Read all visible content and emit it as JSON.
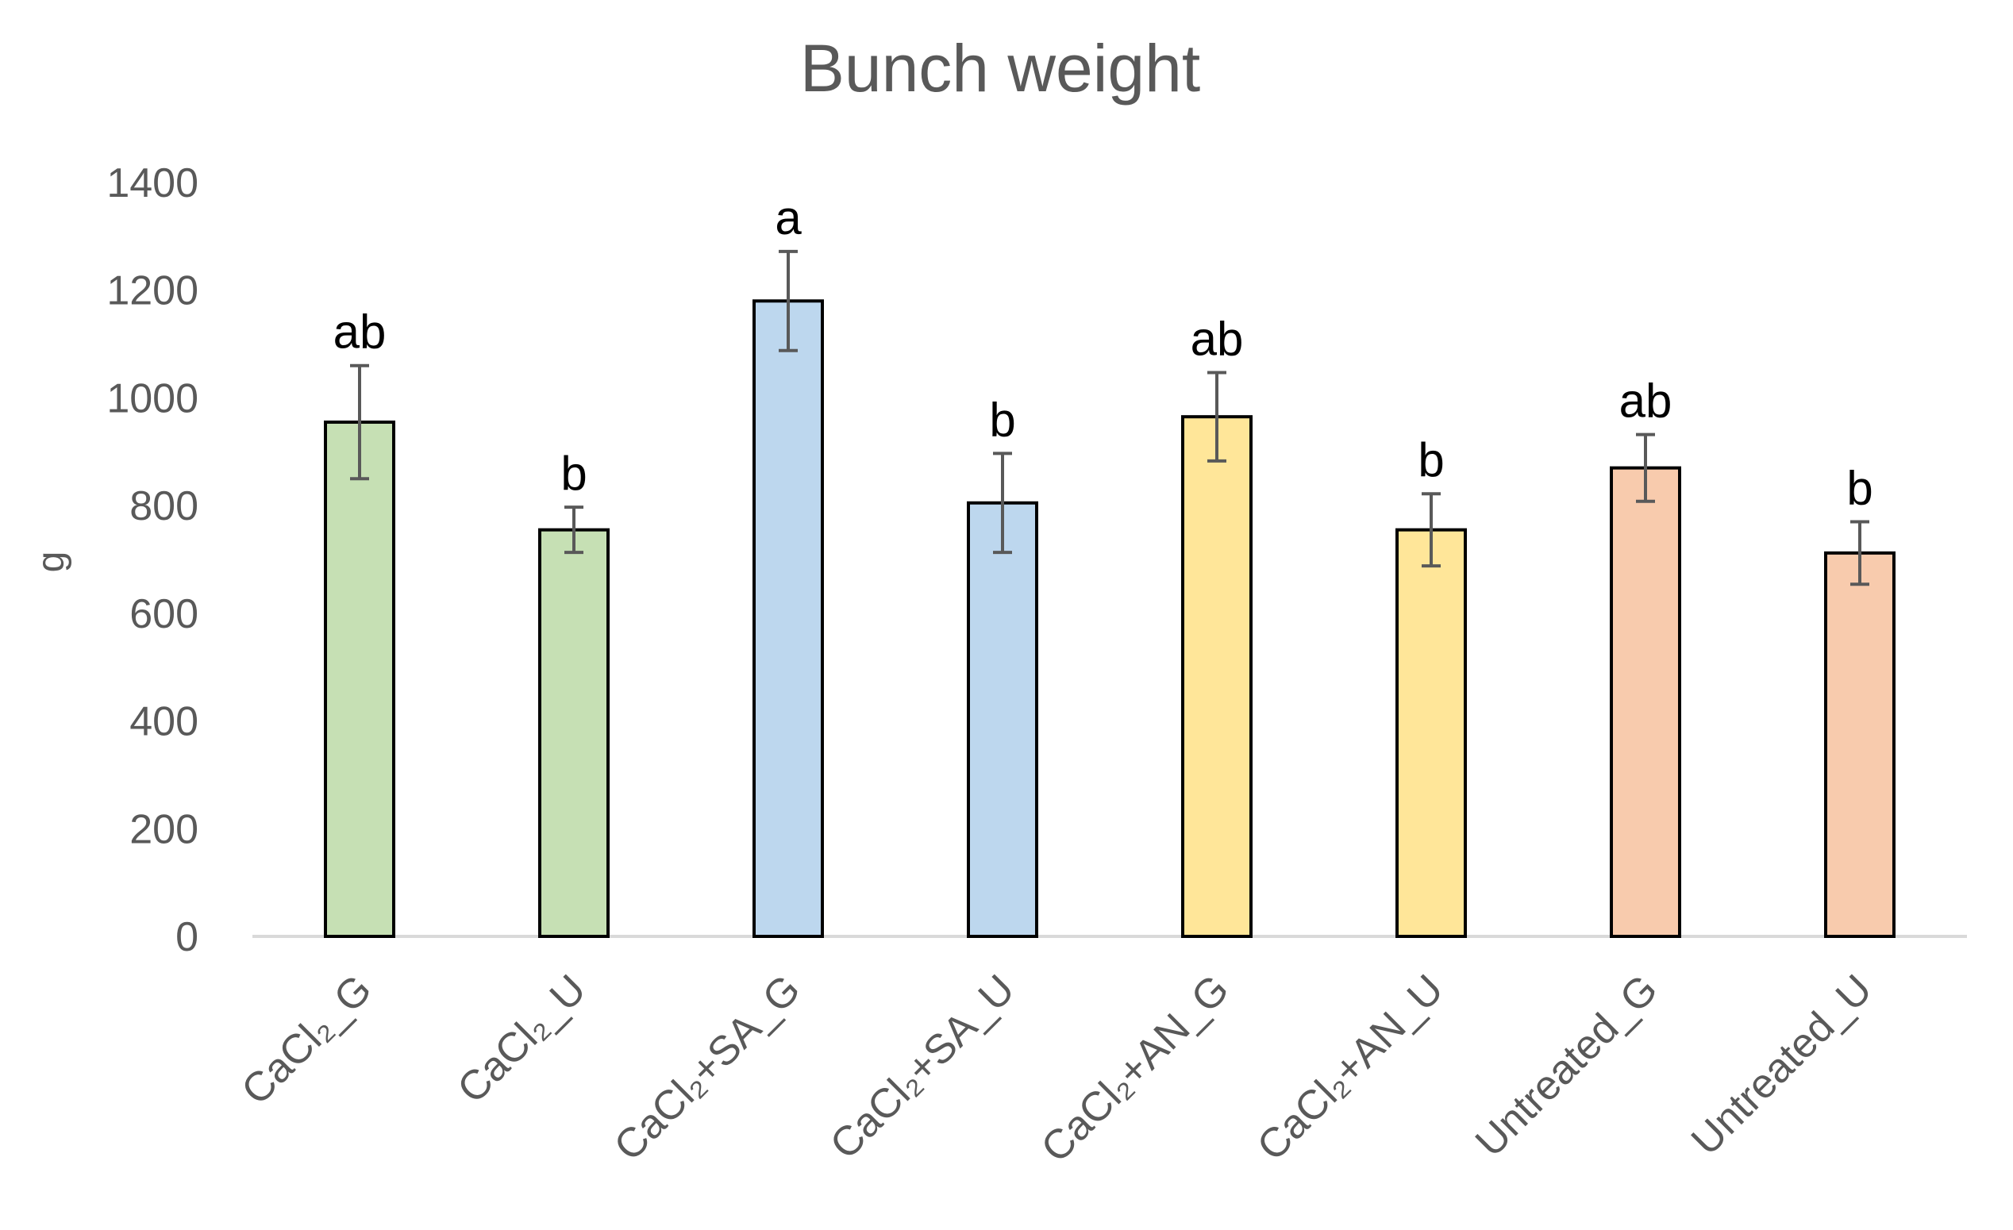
{
  "chart_data": {
    "type": "bar",
    "title": "Bunch weight",
    "xlabel": "",
    "ylabel": "g",
    "ylim": [
      0,
      1400
    ],
    "yticks": [
      0,
      200,
      400,
      600,
      800,
      1000,
      1200,
      1400
    ],
    "grid": false,
    "legend": "none",
    "categories": [
      "CaCl₂_G",
      "CaCl₂_U",
      "CaCl₂+SA_G",
      "CaCl₂+SA_U",
      "CaCl₂+AN_G",
      "CaCl₂+AN_U",
      "Untreated_G",
      "Untreated_U"
    ],
    "values": [
      955,
      755,
      1180,
      805,
      965,
      755,
      870,
      712
    ],
    "errors": [
      105,
      42,
      92,
      92,
      82,
      67,
      62,
      58
    ],
    "significance_labels": [
      "ab",
      "b",
      "a",
      "b",
      "ab",
      "b",
      "ab",
      "b"
    ],
    "colors": [
      "#c6e0b4",
      "#c6e0b4",
      "#bdd7ee",
      "#bdd7ee",
      "#ffe699",
      "#ffe699",
      "#f8cbad",
      "#f8cbad"
    ]
  }
}
